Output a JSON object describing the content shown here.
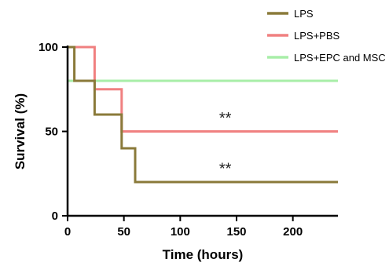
{
  "chart_data": {
    "type": "line",
    "step": true,
    "xlabel": "Time (hours)",
    "ylabel": "Survival (%)",
    "xlim": [
      0,
      240
    ],
    "ylim": [
      0,
      100
    ],
    "xticks": [
      0,
      50,
      100,
      150,
      200
    ],
    "yticks": [
      0,
      50,
      100
    ],
    "grid": false,
    "legend_position": "top-right",
    "series": [
      {
        "name": "LPS",
        "color": "#8a7a3a",
        "points": [
          [
            0,
            100
          ],
          [
            6,
            100
          ],
          [
            6,
            80
          ],
          [
            24,
            80
          ],
          [
            24,
            60
          ],
          [
            48,
            60
          ],
          [
            48,
            40
          ],
          [
            60,
            40
          ],
          [
            60,
            20
          ],
          [
            240,
            20
          ]
        ]
      },
      {
        "name": "LPS+PBS",
        "color": "#f08080",
        "points": [
          [
            0,
            100
          ],
          [
            24,
            100
          ],
          [
            24,
            75
          ],
          [
            48,
            75
          ],
          [
            48,
            50
          ],
          [
            240,
            50
          ]
        ]
      },
      {
        "name": "LPS+EPC and MSC",
        "color": "#a8eea8",
        "points": [
          [
            0,
            80
          ],
          [
            240,
            80
          ]
        ]
      }
    ],
    "annotations": [
      {
        "text": "**",
        "x": 140,
        "y": 55
      },
      {
        "text": "**",
        "x": 140,
        "y": 25
      }
    ]
  }
}
